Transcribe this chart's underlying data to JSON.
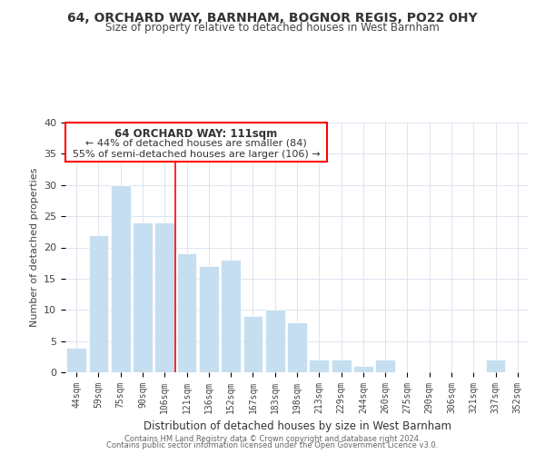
{
  "title": "64, ORCHARD WAY, BARNHAM, BOGNOR REGIS, PO22 0HY",
  "subtitle": "Size of property relative to detached houses in West Barnham",
  "xlabel": "Distribution of detached houses by size in West Barnham",
  "ylabel": "Number of detached properties",
  "bar_color": "#c5dff0",
  "categories": [
    "44sqm",
    "59sqm",
    "75sqm",
    "90sqm",
    "106sqm",
    "121sqm",
    "136sqm",
    "152sqm",
    "167sqm",
    "183sqm",
    "198sqm",
    "213sqm",
    "229sqm",
    "244sqm",
    "260sqm",
    "275sqm",
    "290sqm",
    "306sqm",
    "321sqm",
    "337sqm",
    "352sqm"
  ],
  "values": [
    4,
    22,
    30,
    24,
    24,
    19,
    17,
    18,
    9,
    10,
    8,
    2,
    2,
    1,
    2,
    0,
    0,
    0,
    0,
    2,
    0
  ],
  "ylim": [
    0,
    40
  ],
  "yticks": [
    0,
    5,
    10,
    15,
    20,
    25,
    30,
    35,
    40
  ],
  "property_line_index": 4.5,
  "annotation_title": "64 ORCHARD WAY: 111sqm",
  "annotation_line1": "← 44% of detached houses are smaller (84)",
  "annotation_line2": "55% of semi-detached houses are larger (106) →",
  "footer1": "Contains HM Land Registry data © Crown copyright and database right 2024.",
  "footer2": "Contains public sector information licensed under the Open Government Licence v3.0.",
  "background_color": "#ffffff",
  "grid_color": "#dde4ef"
}
